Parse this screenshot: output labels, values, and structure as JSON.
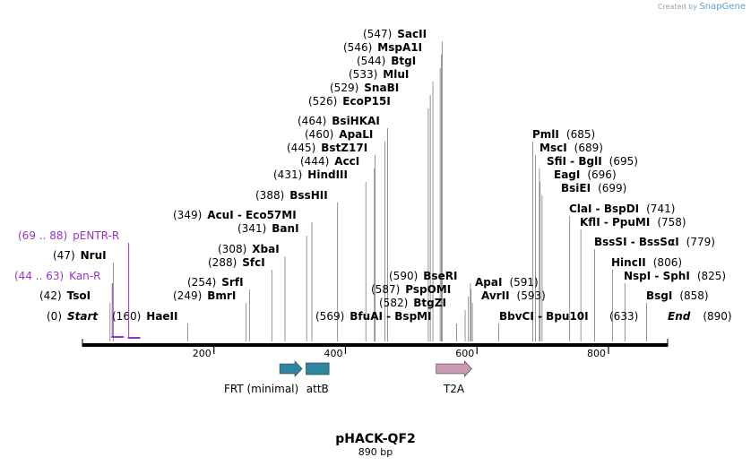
{
  "credit": {
    "prefix": "Created by",
    "brand": "SnapGene"
  },
  "title": "pHACK-QF2",
  "length_label": "890 bp",
  "sequence": {
    "start": 0,
    "end": 890
  },
  "colors": {
    "purple": "#9933cc",
    "teal": "#2e86a0",
    "pink": "#cc99b3",
    "text": "#000000",
    "leader": "#777777"
  },
  "ticks": [
    200,
    400,
    600,
    800
  ],
  "primers": [
    {
      "label": "pENTR-R",
      "range": "(69 .. 88)",
      "from": 69,
      "to": 88,
      "color": "#9933cc"
    },
    {
      "label": "Kan-R",
      "range": "(44 .. 63)",
      "from": 44,
      "to": 63,
      "color": "#9933cc"
    }
  ],
  "features": [
    {
      "label": "FRT (minimal)",
      "from": 300,
      "to": 334,
      "color": "#2e86a0",
      "shape": "arrow"
    },
    {
      "label": "attB",
      "from": 340,
      "to": 375,
      "color": "#2e86a0",
      "shape": "box"
    },
    {
      "label": "T2A",
      "from": 538,
      "to": 592,
      "color": "#cc99b3",
      "shape": "arrow"
    }
  ],
  "sites": [
    {
      "pos": "(0)",
      "name": "Start",
      "italic": true,
      "at": 0
    },
    {
      "pos": "(42)",
      "name": "TsoI",
      "at": 42
    },
    {
      "pos": "(47)",
      "name": "NruI",
      "at": 47
    },
    {
      "pos": "(160)",
      "name": "HaeII",
      "at": 160
    },
    {
      "pos": "(249)",
      "name": "BmrI",
      "at": 249
    },
    {
      "pos": "(254)",
      "name": "SrfI",
      "at": 254
    },
    {
      "pos": "(288)",
      "name": "SfcI",
      "at": 288
    },
    {
      "pos": "(308)",
      "name": "XbaI",
      "at": 308
    },
    {
      "pos": "(341)",
      "name": "BanI",
      "at": 341
    },
    {
      "pos": "(349)",
      "name": "AcuI - Eco57MI",
      "at": 349
    },
    {
      "pos": "(388)",
      "name": "BssHII",
      "at": 388
    },
    {
      "pos": "(431)",
      "name": "HindIII",
      "at": 431
    },
    {
      "pos": "(444)",
      "name": "AccI",
      "at": 444
    },
    {
      "pos": "(445)",
      "name": "BstZ17I",
      "at": 445
    },
    {
      "pos": "(460)",
      "name": "ApaLI",
      "at": 460
    },
    {
      "pos": "(464)",
      "name": "BsiHKAI",
      "at": 464
    },
    {
      "pos": "(526)",
      "name": "EcoP15I",
      "at": 526
    },
    {
      "pos": "(529)",
      "name": "SnaBI",
      "at": 529
    },
    {
      "pos": "(533)",
      "name": "MluI",
      "at": 533
    },
    {
      "pos": "(544)",
      "name": "BtgI",
      "at": 544
    },
    {
      "pos": "(546)",
      "name": "MspA1I",
      "at": 546
    },
    {
      "pos": "(547)",
      "name": "SacII",
      "at": 547
    },
    {
      "pos": "(569)",
      "name": "BfuAI - BspMI",
      "at": 569
    },
    {
      "pos": "(582)",
      "name": "BtgZI",
      "at": 582
    },
    {
      "pos": "(587)",
      "name": "PspOMI",
      "at": 587
    },
    {
      "pos": "(590)",
      "name": "BseRI",
      "at": 590
    },
    {
      "pos": "(591)",
      "name": "ApaI",
      "at": 591
    },
    {
      "pos": "(593)",
      "name": "AvrII",
      "at": 593
    },
    {
      "pos": "(633)",
      "name": "BbvCI - Bpu10I",
      "at": 633
    },
    {
      "pos": "(685)",
      "name": "PmlI",
      "at": 685
    },
    {
      "pos": "(689)",
      "name": "MscI",
      "at": 689
    },
    {
      "pos": "(695)",
      "name": "SfiI - BglI",
      "at": 695
    },
    {
      "pos": "(696)",
      "name": "EagI",
      "at": 696
    },
    {
      "pos": "(699)",
      "name": "BsiEI",
      "at": 699
    },
    {
      "pos": "(741)",
      "name": "ClaI - BspDI",
      "at": 741
    },
    {
      "pos": "(758)",
      "name": "KflI - PpuMI",
      "at": 758
    },
    {
      "pos": "(779)",
      "name": "BssSI - BssSαI",
      "at": 779
    },
    {
      "pos": "(806)",
      "name": "HincII",
      "at": 806
    },
    {
      "pos": "(825)",
      "name": "NspI - SphI",
      "at": 825
    },
    {
      "pos": "(858)",
      "name": "BsgI",
      "at": 858
    },
    {
      "pos": "(890)",
      "name": "End",
      "italic": true,
      "at": 890
    }
  ]
}
